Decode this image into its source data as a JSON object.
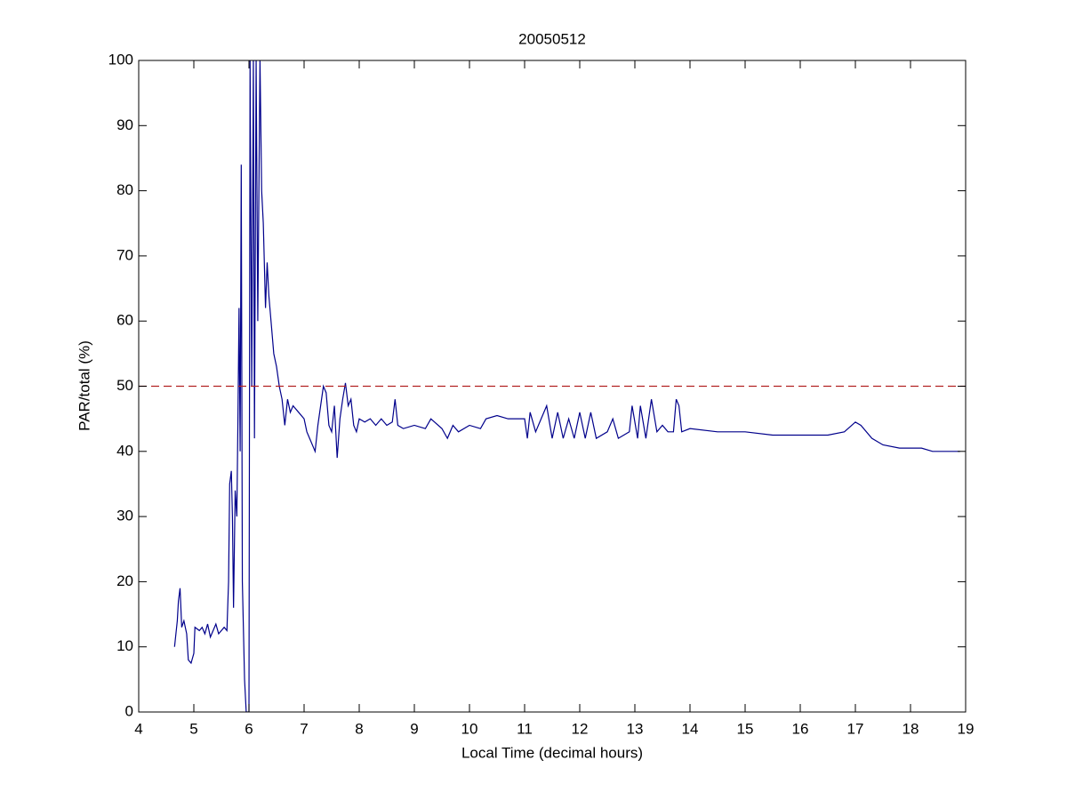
{
  "chart_data": {
    "type": "line",
    "title": "20050512",
    "xlabel": "Local Time (decimal hours)",
    "ylabel": "PAR/total (%)",
    "xlim": [
      4,
      19
    ],
    "ylim": [
      0,
      100
    ],
    "xticks": [
      4,
      5,
      6,
      7,
      8,
      9,
      10,
      11,
      12,
      13,
      14,
      15,
      16,
      17,
      18,
      19
    ],
    "yticks": [
      0,
      10,
      20,
      30,
      40,
      50,
      60,
      70,
      80,
      90,
      100
    ],
    "grid": false,
    "series": [
      {
        "color": "#00008b",
        "dashed": false,
        "x": [
          4.65,
          4.7,
          4.72,
          4.75,
          4.78,
          4.82,
          4.87,
          4.9,
          4.95,
          5.0,
          5.02,
          5.1,
          5.15,
          5.2,
          5.25,
          5.3,
          5.35,
          5.4,
          5.45,
          5.5,
          5.55,
          5.6,
          5.63,
          5.65,
          5.68,
          5.7,
          5.72,
          5.75,
          5.78,
          5.8,
          5.82,
          5.84,
          5.86,
          5.88,
          5.92,
          5.95,
          6.0,
          6.02,
          6.05,
          6.08,
          6.1,
          6.13,
          6.16,
          6.2,
          6.23,
          6.26,
          6.3,
          6.33,
          6.36,
          6.4,
          6.45,
          6.5,
          6.55,
          6.6,
          6.65,
          6.7,
          6.75,
          6.8,
          6.9,
          7.0,
          7.05,
          7.1,
          7.2,
          7.25,
          7.3,
          7.35,
          7.4,
          7.45,
          7.5,
          7.55,
          7.6,
          7.65,
          7.7,
          7.75,
          7.8,
          7.85,
          7.9,
          7.95,
          8.0,
          8.1,
          8.2,
          8.3,
          8.4,
          8.5,
          8.6,
          8.65,
          8.7,
          8.8,
          9.0,
          9.2,
          9.3,
          9.5,
          9.6,
          9.7,
          9.8,
          10.0,
          10.2,
          10.3,
          10.5,
          10.7,
          11.0,
          11.05,
          11.1,
          11.2,
          11.3,
          11.4,
          11.5,
          11.6,
          11.7,
          11.8,
          11.9,
          12.0,
          12.1,
          12.2,
          12.3,
          12.5,
          12.6,
          12.7,
          12.9,
          12.95,
          13.05,
          13.1,
          13.2,
          13.3,
          13.4,
          13.5,
          13.6,
          13.7,
          13.75,
          13.8,
          13.85,
          14.0,
          14.5,
          15.0,
          15.5,
          16.0,
          16.5,
          16.8,
          17.0,
          17.1,
          17.3,
          17.5,
          17.8,
          18.2,
          18.4,
          18.6,
          18.9
        ],
        "values": [
          10,
          14,
          17,
          19,
          13,
          14,
          12,
          8,
          7.5,
          9,
          13,
          12.5,
          13,
          12,
          13.5,
          11.5,
          12.5,
          13.5,
          12,
          12.5,
          13,
          12.5,
          20,
          35,
          37,
          30,
          16,
          34,
          30,
          45,
          62,
          40,
          84,
          20,
          5,
          0,
          0,
          100,
          50,
          100,
          42,
          100,
          60,
          100,
          80,
          75,
          62,
          69,
          64,
          60,
          55,
          53,
          50,
          48,
          44,
          48,
          46,
          47,
          46,
          45,
          43,
          42,
          40,
          44,
          47,
          50,
          49,
          44,
          43,
          47,
          39,
          45,
          48,
          50.5,
          47,
          48,
          44,
          43,
          45,
          44.5,
          45,
          44,
          45,
          44,
          44.5,
          48,
          44,
          43.5,
          44,
          43.5,
          45,
          43.5,
          42,
          44,
          43,
          44,
          43.5,
          45,
          45.5,
          45,
          45,
          42,
          46,
          43,
          45,
          47,
          42,
          46,
          42,
          45,
          42,
          46,
          42,
          46,
          42,
          43,
          45,
          42,
          43,
          47,
          42,
          47,
          42,
          48,
          43,
          44,
          43,
          43,
          48,
          47,
          43,
          43.5,
          43,
          43,
          42.5,
          42.5,
          42.5,
          43,
          44.5,
          44,
          42,
          41,
          40.5,
          40.5,
          40,
          40,
          40
        ]
      },
      {
        "color": "#b22222",
        "dashed": true,
        "x": [
          4,
          19
        ],
        "values": [
          50,
          50
        ]
      }
    ]
  }
}
